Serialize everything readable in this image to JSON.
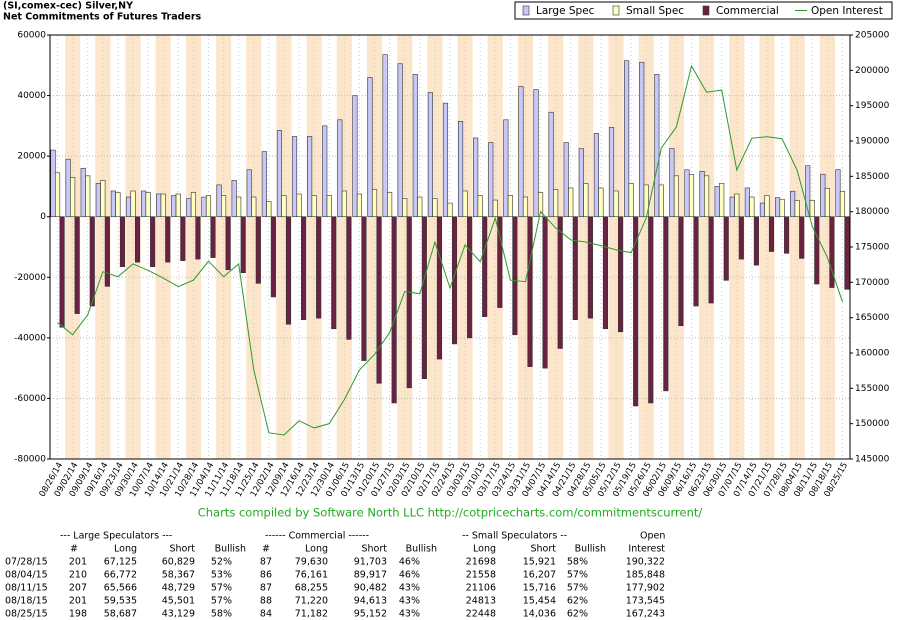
{
  "chart_data": {
    "type": "bar",
    "title": "(SI,comex-cec) Silver,NY",
    "subtitle": "Net Commitments of Futures Traders",
    "annotation": "Charts compiled by Software North LLC  http://cotpricecharts.com/commitmentscurrent/",
    "categories": [
      "08/26/14",
      "09/02/14",
      "09/09/14",
      "09/16/14",
      "09/23/14",
      "09/30/14",
      "10/07/14",
      "10/14/14",
      "10/21/14",
      "10/28/14",
      "11/04/14",
      "11/11/14",
      "11/18/14",
      "11/25/14",
      "12/02/14",
      "12/09/14",
      "12/16/14",
      "12/23/14",
      "12/30/14",
      "01/06/15",
      "01/13/15",
      "01/20/15",
      "01/27/15",
      "02/03/15",
      "02/10/15",
      "02/17/15",
      "02/24/15",
      "03/03/15",
      "03/10/15",
      "03/17/15",
      "03/24/15",
      "03/31/15",
      "04/07/15",
      "04/14/15",
      "04/21/15",
      "04/28/15",
      "05/05/15",
      "05/12/15",
      "05/19/15",
      "05/26/15",
      "06/02/15",
      "06/09/15",
      "06/16/15",
      "06/23/15",
      "06/30/15",
      "07/07/15",
      "07/14/15",
      "07/21/15",
      "07/28/15",
      "08/04/15",
      "08/11/15",
      "08/18/15",
      "08/25/15"
    ],
    "series": [
      {
        "name": "Large Spec",
        "type": "bar",
        "color": "#c8c8f8",
        "values": [
          22000,
          19000,
          16000,
          11000,
          8500,
          6500,
          8500,
          7500,
          7000,
          6000,
          6500,
          10500,
          12000,
          15500,
          21500,
          28500,
          26500,
          26500,
          30000,
          32000,
          40000,
          46000,
          53500,
          50500,
          47000,
          41000,
          37500,
          31500,
          26000,
          24500,
          32000,
          43000,
          42000,
          34500,
          24500,
          22500,
          27500,
          29500,
          51500,
          51000,
          47000,
          22500,
          15500,
          15000,
          10000,
          6500,
          9500,
          4500,
          6296,
          8405,
          16837,
          14034,
          15558
        ]
      },
      {
        "name": "Small Spec",
        "type": "bar",
        "color": "#ffffc0",
        "values": [
          14500,
          13000,
          13500,
          12000,
          8000,
          8500,
          8000,
          7500,
          7500,
          8000,
          7000,
          7000,
          6500,
          6500,
          5000,
          7000,
          7500,
          7000,
          7000,
          8500,
          7500,
          9000,
          8000,
          6000,
          6500,
          6000,
          4500,
          8500,
          7000,
          5500,
          7000,
          6500,
          8000,
          9000,
          9500,
          11000,
          9500,
          8500,
          11000,
          10500,
          10500,
          13500,
          14000,
          13500,
          11000,
          7500,
          6500,
          7000,
          5777,
          5351,
          5390,
          9359,
          8412
        ]
      },
      {
        "name": "Commercial",
        "type": "bar",
        "color": "#6b2142",
        "values": [
          -36500,
          -32000,
          -29500,
          -23000,
          -16500,
          -15000,
          -16500,
          -15000,
          -14500,
          -14000,
          -13500,
          -17500,
          -18500,
          -22000,
          -26500,
          -35500,
          -34000,
          -33500,
          -37000,
          -40500,
          -47500,
          -55000,
          -61500,
          -56500,
          -53500,
          -47000,
          -42000,
          -40000,
          -33000,
          -30000,
          -39000,
          -49500,
          -50000,
          -43500,
          -34000,
          -33500,
          -37000,
          -38000,
          -62500,
          -61500,
          -57500,
          -36000,
          -29500,
          -28500,
          -21000,
          -14000,
          -16000,
          -11500,
          -12073,
          -13756,
          -22227,
          -23393,
          -23970
        ]
      },
      {
        "name": "Open Interest",
        "type": "line",
        "axis": "y2",
        "color": "#2e9a2e",
        "values": [
          164300,
          162600,
          165400,
          171500,
          170800,
          172600,
          171700,
          170600,
          169400,
          170300,
          173000,
          170800,
          172600,
          157600,
          148700,
          148400,
          150400,
          149400,
          150000,
          153400,
          157600,
          159800,
          162900,
          168700,
          168400,
          175700,
          169200,
          175300,
          172900,
          179100,
          170300,
          170100,
          180000,
          177700,
          176000,
          175700,
          175200,
          174600,
          174200,
          179100,
          189000,
          192000,
          200600,
          196900,
          197200,
          185900,
          190400,
          190600,
          190322,
          185848,
          177902,
          173545,
          167243
        ]
      }
    ],
    "ylim": [
      -80000,
      60000
    ],
    "yticks": [
      -80000,
      -60000,
      -40000,
      -20000,
      0,
      20000,
      40000,
      60000
    ],
    "y2lim": [
      145000,
      205000
    ],
    "y2ticks": [
      145000,
      150000,
      155000,
      160000,
      165000,
      170000,
      175000,
      180000,
      185000,
      190000,
      195000,
      200000,
      205000
    ],
    "grid": true,
    "legend": "top-right"
  },
  "table": {
    "group_headers": [
      "--- Large Speculators ---",
      "------ Commercial ------",
      "-- Small Speculators --",
      "Open"
    ],
    "columns": [
      "#",
      "Long",
      "Short",
      "Bullish",
      "#",
      "Long",
      "Short",
      "Bullish",
      "Long",
      "Short",
      "Bullish",
      "Interest"
    ],
    "rows": [
      [
        "07/28/15",
        "201",
        "67,125",
        "60,829",
        "52%",
        "87",
        "79,630",
        "91,703",
        "46%",
        "21698",
        "15,921",
        "58%",
        "190,322"
      ],
      [
        "08/04/15",
        "210",
        "66,772",
        "58,367",
        "53%",
        "86",
        "76,161",
        "89,917",
        "46%",
        "21558",
        "16,207",
        "57%",
        "185,848"
      ],
      [
        "08/11/15",
        "207",
        "65,566",
        "48,729",
        "57%",
        "87",
        "68,255",
        "90,482",
        "43%",
        "21106",
        "15,716",
        "57%",
        "177,902"
      ],
      [
        "08/18/15",
        "201",
        "59,535",
        "45,501",
        "57%",
        "88",
        "71,220",
        "94,613",
        "43%",
        "24813",
        "15,454",
        "62%",
        "173,545"
      ],
      [
        "08/25/15",
        "198",
        "58,687",
        "43,129",
        "58%",
        "84",
        "71,182",
        "95,152",
        "43%",
        "22448",
        "14,036",
        "62%",
        "167,243"
      ]
    ]
  }
}
